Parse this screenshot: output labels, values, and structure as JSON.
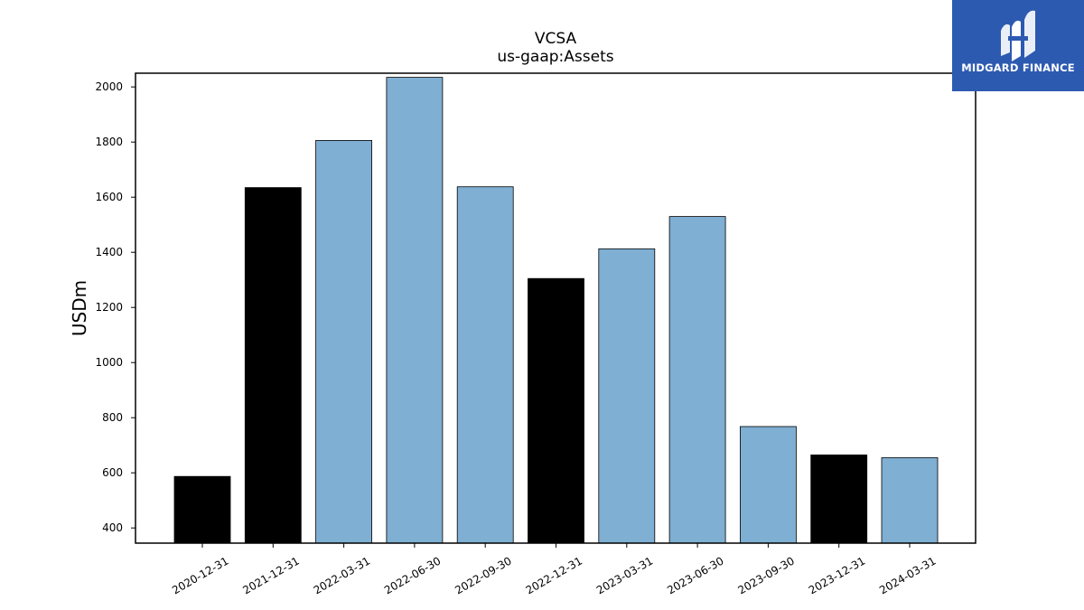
{
  "chart_data": {
    "type": "bar",
    "title": "VCSA",
    "subtitle": "us-gaap:Assets",
    "xlabel": "",
    "ylabel": "USDm",
    "ylim": [
      345,
      2050
    ],
    "yticks": [
      400,
      600,
      800,
      1000,
      1200,
      1400,
      1600,
      1800,
      2000
    ],
    "grid": false,
    "categories": [
      "2020-12-31",
      "2021-12-31",
      "2022-03-31",
      "2022-06-30",
      "2022-09-30",
      "2022-12-31",
      "2023-03-31",
      "2023-06-30",
      "2023-09-30",
      "2023-12-31",
      "2024-03-31"
    ],
    "values": [
      587,
      1635,
      1806,
      2035,
      1638,
      1305,
      1413,
      1530,
      768,
      665,
      655
    ],
    "bar_colors": [
      "#000000",
      "#000000",
      "#7fafd2",
      "#7fafd2",
      "#7fafd2",
      "#000000",
      "#7fafd2",
      "#7fafd2",
      "#7fafd2",
      "#000000",
      "#7fafd2"
    ]
  },
  "brand": {
    "name": "MIDGARD FINANCE",
    "background": "#2d5ab1"
  }
}
